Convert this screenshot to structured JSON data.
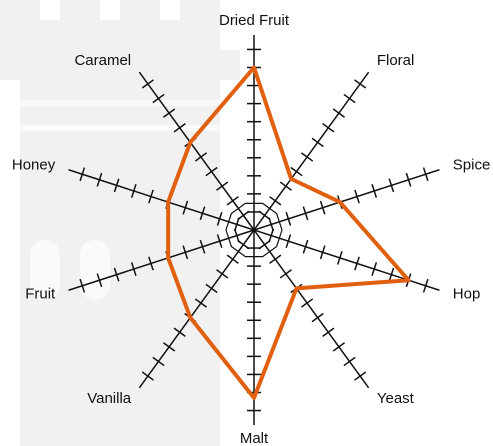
{
  "chart_data": {
    "type": "radar",
    "categories": [
      "Dried Fruit",
      "Floral",
      "Spice",
      "Hop",
      "Yeast",
      "Malt",
      "Vanilla",
      "Fruit",
      "Honey",
      "Caramel"
    ],
    "values": [
      9,
      3.5,
      5,
      9,
      4,
      9.3,
      6,
      5,
      5,
      6
    ],
    "color": "#e0600f",
    "rlim": [
      0,
      10.8
    ],
    "rticks": [
      1,
      2,
      3,
      4,
      5,
      6,
      7,
      8,
      9,
      10
    ]
  }
}
